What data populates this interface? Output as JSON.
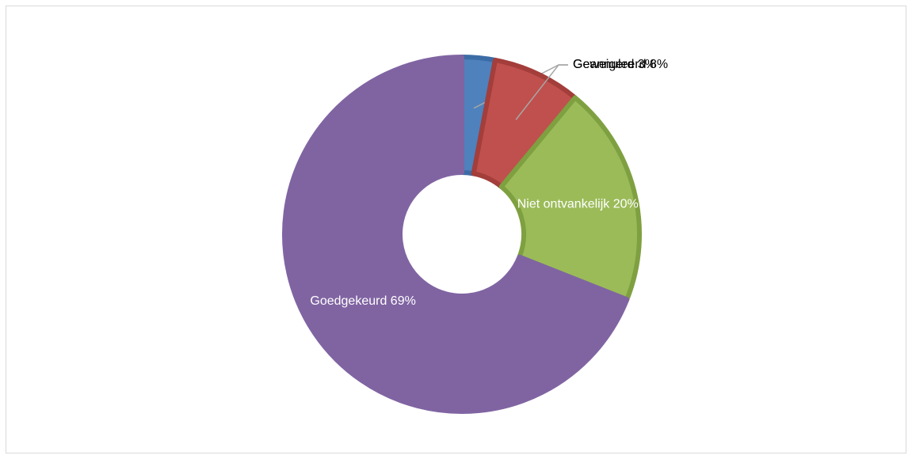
{
  "chart_data": {
    "type": "donut",
    "categories": [
      "Geweigerd",
      "Geannuleerd",
      "Niet ontvankelijk",
      "Goedgekeurd"
    ],
    "values": [
      3,
      8,
      20,
      69
    ],
    "value_labels": [
      "3%",
      "8%",
      "20%",
      "69%"
    ],
    "colors": [
      "#4f81bd",
      "#c0504d",
      "#9bbb59",
      "#8064a2"
    ],
    "border_colors": [
      "#3c6ca6",
      "#a33e3b",
      "#7fa040",
      "#8064a2"
    ],
    "label_position": [
      "outside",
      "outside",
      "inside",
      "inside"
    ]
  }
}
